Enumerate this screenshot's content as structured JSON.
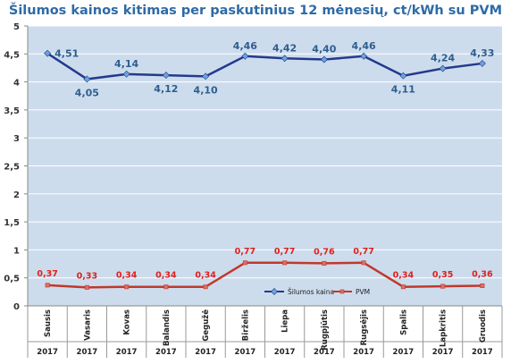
{
  "chart_data": {
    "type": "line",
    "title": "Šilumos kainos kitimas per paskutinius 12 mėnesių, ct/kWh su PVM",
    "categories": [
      "Sausis",
      "Vasaris",
      "Kovas",
      "Balandis",
      "Gegužė",
      "Birželis",
      "Liepa",
      "Rugpjūtis",
      "Rugsėjis",
      "Spalis",
      "Lapkritis",
      "Gruodis"
    ],
    "years": [
      "2017",
      "2017",
      "2017",
      "2017",
      "2017",
      "2017",
      "2017",
      "2017",
      "2017",
      "2017",
      "2017",
      "2017"
    ],
    "series": [
      {
        "name": "Šilumos kaina",
        "color": "#233a8c",
        "label_color": "#2e5e8e",
        "values": [
          4.51,
          4.05,
          4.14,
          4.12,
          4.1,
          4.46,
          4.42,
          4.4,
          4.46,
          4.11,
          4.24,
          4.33
        ],
        "labels": [
          "4,51",
          "4,05",
          "4,14",
          "4,12",
          "4,10",
          "4,46",
          "4,42",
          "4,40",
          "4,46",
          "4,11",
          "4,24",
          "4,33"
        ]
      },
      {
        "name": "PVM",
        "color": "#c0392b",
        "label_color": "#e0201a",
        "values": [
          0.37,
          0.33,
          0.34,
          0.34,
          0.34,
          0.77,
          0.77,
          0.76,
          0.77,
          0.34,
          0.35,
          0.36
        ],
        "labels": [
          "0,37",
          "0,33",
          "0,34",
          "0,34",
          "0,34",
          "0,77",
          "0,77",
          "0,76",
          "0,77",
          "0,34",
          "0,35",
          "0,36"
        ]
      }
    ],
    "ylim": [
      0,
      5
    ],
    "yticks": [
      0,
      0.5,
      1,
      1.5,
      2,
      2.5,
      3,
      3.5,
      4,
      4.5,
      5
    ],
    "ytick_labels": [
      "0",
      "0,5",
      "1",
      "1,5",
      "2",
      "2,5",
      "3",
      "3,5",
      "4",
      "4,5",
      "5"
    ],
    "grid": true,
    "legend_position": "inside-bottom-right",
    "plot_background": "#cddced"
  }
}
